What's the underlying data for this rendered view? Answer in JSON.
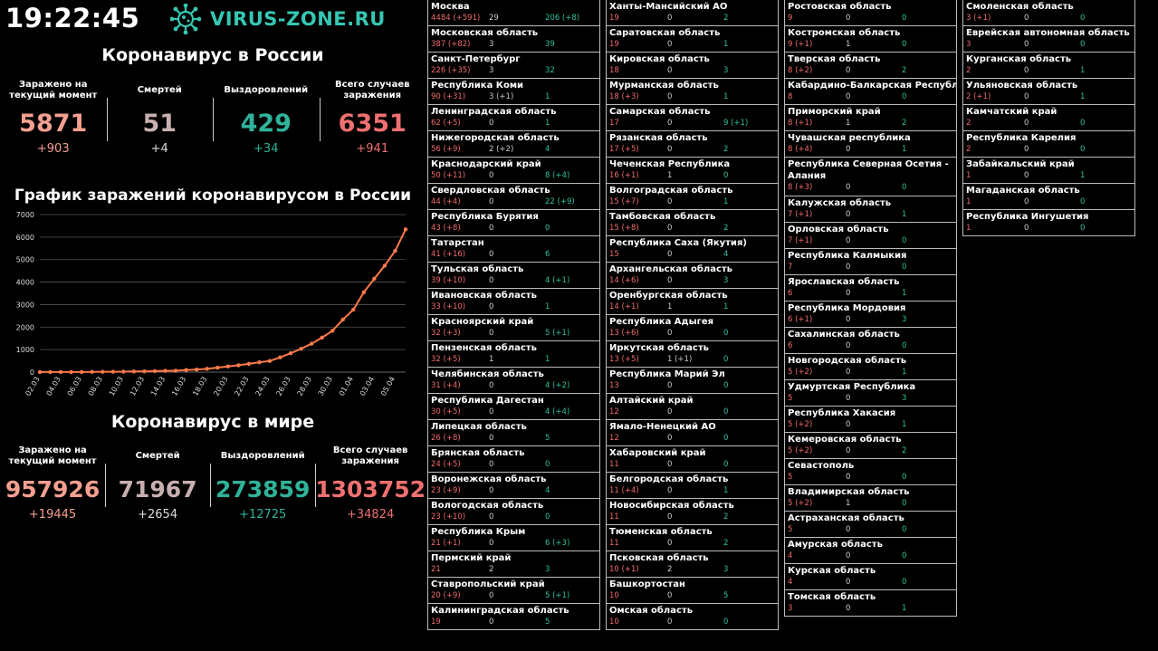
{
  "header": {
    "time": "19:22:45",
    "logo_text": "VIRUS-ZONE.RU",
    "logo_icon": "virus-icon"
  },
  "russia": {
    "title": "Коронавирус в России",
    "stats": [
      {
        "label": "Заражено на текущий момент",
        "value": "5871",
        "delta": "+903",
        "color": "#f4a090"
      },
      {
        "label": "Смертей",
        "value": "51",
        "delta": "+4",
        "color": "#c9b0b0"
      },
      {
        "label": "Выздоровлений",
        "value": "429",
        "delta": "+34",
        "color": "#2fb39a"
      },
      {
        "label": "Всего случаев заражения",
        "value": "6351",
        "delta": "+941",
        "color": "#f07070"
      }
    ]
  },
  "chart_title": "График заражений коронавирусом в России",
  "chart_data": {
    "type": "line",
    "title": "График заражений коронавирусом в России",
    "xlabel": "",
    "ylabel": "",
    "ylim": [
      0,
      7000
    ],
    "yticks": [
      0,
      1000,
      2000,
      3000,
      4000,
      5000,
      6000,
      7000
    ],
    "xtick_labels": [
      "02.03",
      "04.03",
      "06.03",
      "08.03",
      "10.03",
      "12.03",
      "14.03",
      "16.03",
      "18.03",
      "20.03",
      "22.03",
      "24.03",
      "26.03",
      "28.03",
      "30.03",
      "01.04",
      "03.04",
      "05.04"
    ],
    "x": [
      "02.03",
      "03.03",
      "04.03",
      "05.03",
      "06.03",
      "07.03",
      "08.03",
      "09.03",
      "10.03",
      "11.03",
      "12.03",
      "13.03",
      "14.03",
      "15.03",
      "16.03",
      "17.03",
      "18.03",
      "19.03",
      "20.03",
      "21.03",
      "22.03",
      "23.03",
      "24.03",
      "25.03",
      "26.03",
      "27.03",
      "28.03",
      "29.03",
      "30.03",
      "31.03",
      "01.04",
      "02.04",
      "03.04",
      "04.04",
      "05.04",
      "06.04"
    ],
    "series": [
      {
        "values": [
          3,
          3,
          3,
          4,
          4,
          10,
          14,
          17,
          20,
          28,
          34,
          45,
          59,
          63,
          93,
          114,
          147,
          199,
          253,
          306,
          367,
          438,
          495,
          658,
          840,
          1036,
          1264,
          1534,
          1836,
          2337,
          2777,
          3548,
          4149,
          4731,
          5389,
          6343
        ],
        "color": "#ff7a4a"
      }
    ],
    "grid": true,
    "legend": "none"
  },
  "world": {
    "title": "Коронавирус в мире",
    "stats": [
      {
        "label": "Заражено на текущий момент",
        "value": "957926",
        "delta": "+19445",
        "color": "#f4a090"
      },
      {
        "label": "Смертей",
        "value": "71967",
        "delta": "+2654",
        "color": "#c9b0b0"
      },
      {
        "label": "Выздоровлений",
        "value": "273859",
        "delta": "+12725",
        "color": "#2fb39a"
      },
      {
        "label": "Всего случаев заражения",
        "value": "1303752",
        "delta": "+34824",
        "color": "#f07070"
      }
    ]
  },
  "regions": [
    [
      {
        "name": "Москва",
        "infected": "4484 (+591)",
        "deaths": "29",
        "recovered": "206 (+8)"
      },
      {
        "name": "Московская область",
        "infected": "387 (+82)",
        "deaths": "3",
        "recovered": "39"
      },
      {
        "name": "Санкт-Петербург",
        "infected": "226 (+35)",
        "deaths": "3",
        "recovered": "32"
      },
      {
        "name": "Республика Коми",
        "infected": "90 (+31)",
        "deaths": "3 (+1)",
        "recovered": "1"
      },
      {
        "name": "Ленинградская область",
        "infected": "62 (+5)",
        "deaths": "0",
        "recovered": "1"
      },
      {
        "name": "Нижегородская область",
        "infected": "56 (+9)",
        "deaths": "2 (+2)",
        "recovered": "4"
      },
      {
        "name": "Краснодарский край",
        "infected": "50 (+11)",
        "deaths": "0",
        "recovered": "8 (+4)"
      },
      {
        "name": "Свердловская область",
        "infected": "44 (+4)",
        "deaths": "0",
        "recovered": "22 (+9)"
      },
      {
        "name": "Республика Бурятия",
        "infected": "43 (+8)",
        "deaths": "0",
        "recovered": "0"
      },
      {
        "name": "Татарстан",
        "infected": "41 (+16)",
        "deaths": "0",
        "recovered": "6"
      },
      {
        "name": "Тульская область",
        "infected": "39 (+10)",
        "deaths": "0",
        "recovered": "4 (+1)"
      },
      {
        "name": "Ивановская область",
        "infected": "33 (+10)",
        "deaths": "0",
        "recovered": "1"
      },
      {
        "name": "Красноярский край",
        "infected": "32 (+3)",
        "deaths": "0",
        "recovered": "5 (+1)"
      },
      {
        "name": "Пензенская область",
        "infected": "32 (+5)",
        "deaths": "1",
        "recovered": "1"
      },
      {
        "name": "Челябинская область",
        "infected": "31 (+4)",
        "deaths": "0",
        "recovered": "4 (+2)"
      },
      {
        "name": "Республика Дагестан",
        "infected": "30 (+5)",
        "deaths": "0",
        "recovered": "4 (+4)"
      },
      {
        "name": "Липецкая область",
        "infected": "26 (+8)",
        "deaths": "0",
        "recovered": "5"
      },
      {
        "name": "Брянская область",
        "infected": "24 (+5)",
        "deaths": "0",
        "recovered": "0"
      },
      {
        "name": "Воронежская область",
        "infected": "23 (+9)",
        "deaths": "0",
        "recovered": "4"
      },
      {
        "name": "Вологодская область",
        "infected": "23 (+10)",
        "deaths": "0",
        "recovered": "0"
      },
      {
        "name": "Республика Крым",
        "infected": "21 (+1)",
        "deaths": "0",
        "recovered": "6 (+3)"
      },
      {
        "name": "Пермский край",
        "infected": "21",
        "deaths": "2",
        "recovered": "3"
      },
      {
        "name": "Ставропольский край",
        "infected": "20 (+9)",
        "deaths": "0",
        "recovered": "5 (+1)"
      },
      {
        "name": "Калининградская область",
        "infected": "19",
        "deaths": "0",
        "recovered": "5"
      }
    ],
    [
      {
        "name": "Ханты-Мансийский АО",
        "infected": "19",
        "deaths": "0",
        "recovered": "2"
      },
      {
        "name": "Саратовская область",
        "infected": "19",
        "deaths": "0",
        "recovered": "1"
      },
      {
        "name": "Кировская область",
        "infected": "18",
        "deaths": "0",
        "recovered": "3"
      },
      {
        "name": "Мурманская область",
        "infected": "18 (+3)",
        "deaths": "0",
        "recovered": "1"
      },
      {
        "name": "Самарская область",
        "infected": "17",
        "deaths": "0",
        "recovered": "9 (+1)"
      },
      {
        "name": "Рязанская область",
        "infected": "17 (+5)",
        "deaths": "0",
        "recovered": "2"
      },
      {
        "name": "Чеченская Республика",
        "infected": "16 (+1)",
        "deaths": "1",
        "recovered": "0"
      },
      {
        "name": "Волгоградская область",
        "infected": "15 (+7)",
        "deaths": "0",
        "recovered": "1"
      },
      {
        "name": "Тамбовская область",
        "infected": "15 (+8)",
        "deaths": "0",
        "recovered": "2"
      },
      {
        "name": "Республика Саха (Якутия)",
        "infected": "15",
        "deaths": "0",
        "recovered": "4"
      },
      {
        "name": "Архангельская область",
        "infected": "14 (+6)",
        "deaths": "0",
        "recovered": "3"
      },
      {
        "name": "Оренбургская область",
        "infected": "14 (+1)",
        "deaths": "1",
        "recovered": "1"
      },
      {
        "name": "Республика Адыгея",
        "infected": "13 (+6)",
        "deaths": "0",
        "recovered": "0"
      },
      {
        "name": "Иркутская область",
        "infected": "13 (+5)",
        "deaths": "1 (+1)",
        "recovered": "0"
      },
      {
        "name": "Республика Марий Эл",
        "infected": "13",
        "deaths": "0",
        "recovered": "0"
      },
      {
        "name": "Алтайский край",
        "infected": "12",
        "deaths": "0",
        "recovered": "0"
      },
      {
        "name": "Ямало-Ненецкий АО",
        "infected": "12",
        "deaths": "0",
        "recovered": "0"
      },
      {
        "name": "Хабаровский край",
        "infected": "11",
        "deaths": "0",
        "recovered": "0"
      },
      {
        "name": "Белгородская область",
        "infected": "11 (+4)",
        "deaths": "0",
        "recovered": "1"
      },
      {
        "name": "Новосибирская область",
        "infected": "11",
        "deaths": "0",
        "recovered": "2"
      },
      {
        "name": "Тюменская область",
        "infected": "11",
        "deaths": "0",
        "recovered": "2"
      },
      {
        "name": "Псковская область",
        "infected": "10 (+1)",
        "deaths": "2",
        "recovered": "3"
      },
      {
        "name": "Башкортостан",
        "infected": "10",
        "deaths": "0",
        "recovered": "5"
      },
      {
        "name": "Омская область",
        "infected": "10",
        "deaths": "0",
        "recovered": "0"
      }
    ],
    [
      {
        "name": "Ростовская область",
        "infected": "9",
        "deaths": "0",
        "recovered": "0"
      },
      {
        "name": "Костромская область",
        "infected": "9 (+1)",
        "deaths": "1",
        "recovered": "0"
      },
      {
        "name": "Тверская область",
        "infected": "8 (+2)",
        "deaths": "0",
        "recovered": "2"
      },
      {
        "name": "Кабардино-Балкарская Республика",
        "infected": "8",
        "deaths": "0",
        "recovered": "0"
      },
      {
        "name": "Приморский край",
        "infected": "8 (+1)",
        "deaths": "1",
        "recovered": "2"
      },
      {
        "name": "Чувашская республика",
        "infected": "8 (+4)",
        "deaths": "0",
        "recovered": "1"
      },
      {
        "name": "Республика Северная Осетия - Алания",
        "infected": "8 (+3)",
        "deaths": "0",
        "recovered": "0",
        "tall": true
      },
      {
        "name": "Калужская область",
        "infected": "7 (+1)",
        "deaths": "0",
        "recovered": "1"
      },
      {
        "name": "Орловская область",
        "infected": "7 (+1)",
        "deaths": "0",
        "recovered": "0"
      },
      {
        "name": "Республика Калмыкия",
        "infected": "7",
        "deaths": "0",
        "recovered": "0"
      },
      {
        "name": "Ярославская область",
        "infected": "6",
        "deaths": "0",
        "recovered": "1"
      },
      {
        "name": "Республика Мордовия",
        "infected": "6 (+1)",
        "deaths": "0",
        "recovered": "3"
      },
      {
        "name": "Сахалинская область",
        "infected": "6",
        "deaths": "0",
        "recovered": "0"
      },
      {
        "name": "Новгородская область",
        "infected": "5 (+2)",
        "deaths": "0",
        "recovered": "1"
      },
      {
        "name": "Удмуртская Республика",
        "infected": "5",
        "deaths": "0",
        "recovered": "3"
      },
      {
        "name": "Республика Хакасия",
        "infected": "5 (+2)",
        "deaths": "0",
        "recovered": "1"
      },
      {
        "name": "Кемеровская область",
        "infected": "5 (+2)",
        "deaths": "0",
        "recovered": "2"
      },
      {
        "name": "Севастополь",
        "infected": "5",
        "deaths": "0",
        "recovered": "0"
      },
      {
        "name": "Владимирская область",
        "infected": "5 (+2)",
        "deaths": "1",
        "recovered": "0"
      },
      {
        "name": "Астраханская область",
        "infected": "5",
        "deaths": "0",
        "recovered": "0"
      },
      {
        "name": "Амурская область",
        "infected": "4",
        "deaths": "0",
        "recovered": "0"
      },
      {
        "name": "Курская область",
        "infected": "4",
        "deaths": "0",
        "recovered": "0"
      },
      {
        "name": "Томская область",
        "infected": "3",
        "deaths": "0",
        "recovered": "1"
      }
    ],
    [
      {
        "name": "Смоленская область",
        "infected": "3 (+1)",
        "deaths": "0",
        "recovered": "0"
      },
      {
        "name": "Еврейская автономная область",
        "infected": "3",
        "deaths": "0",
        "recovered": "0"
      },
      {
        "name": "Курганская область",
        "infected": "2",
        "deaths": "0",
        "recovered": "1"
      },
      {
        "name": "Ульяновская область",
        "infected": "2 (+1)",
        "deaths": "0",
        "recovered": "1"
      },
      {
        "name": "Камчатский край",
        "infected": "2",
        "deaths": "0",
        "recovered": "0"
      },
      {
        "name": "Республика Карелия",
        "infected": "2",
        "deaths": "0",
        "recovered": "0"
      },
      {
        "name": "Забайкальский край",
        "infected": "1",
        "deaths": "0",
        "recovered": "1"
      },
      {
        "name": "Магаданская область",
        "infected": "1",
        "deaths": "0",
        "recovered": "0"
      },
      {
        "name": "Республика Ингушетия",
        "infected": "1",
        "deaths": "0",
        "recovered": "0"
      }
    ]
  ]
}
